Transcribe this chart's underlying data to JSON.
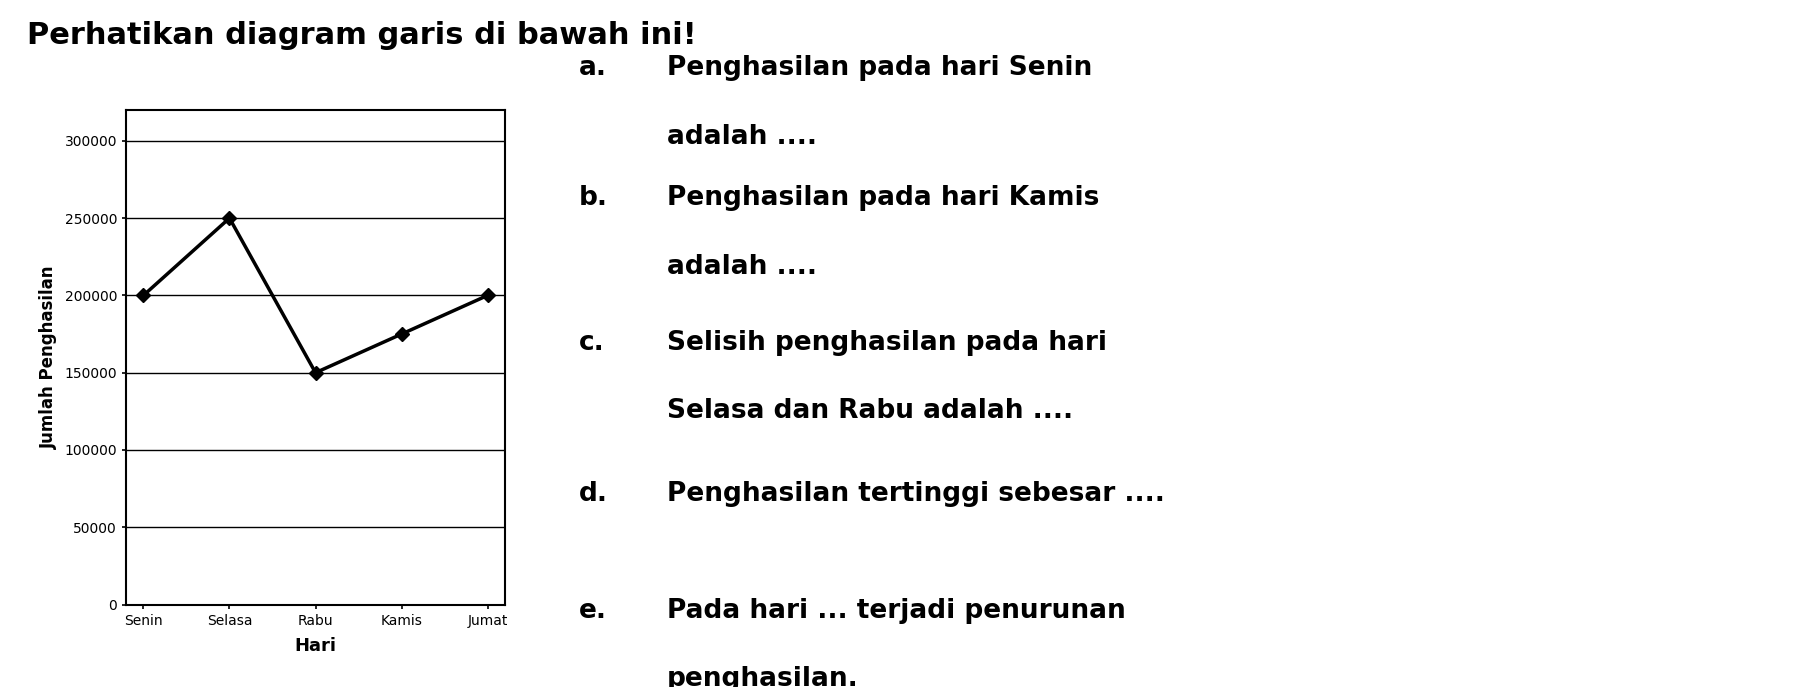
{
  "days": [
    "Senin",
    "Selasa",
    "Rabu",
    "Kamis",
    "Jumat"
  ],
  "values": [
    200000,
    250000,
    150000,
    175000,
    200000
  ],
  "ylabel": "Jumlah Penghasilan",
  "xlabel": "Hari",
  "title": "Perhatikan diagram garis di bawah ini!",
  "yticks": [
    0,
    50000,
    100000,
    150000,
    200000,
    250000,
    300000
  ],
  "ylim": [
    0,
    320000
  ],
  "line_color": "#000000",
  "marker": "D",
  "marker_size": 7,
  "marker_color": "#000000",
  "bg_color": "#ffffff",
  "q_lines": [
    [
      "a.",
      "Penghasilan pada hari Senin",
      "adalah ...."
    ],
    [
      "b.",
      "Penghasilan pada hari Kamis",
      "adalah ...."
    ],
    [
      "c.",
      "Selisih penghasilan pada hari",
      "Selasa dan Rabu adalah ...."
    ],
    [
      "d.",
      "Penghasilan tertinggi sebesar ...."
    ],
    [
      "e.",
      "Pada hari ... terjadi penurunan",
      "penghasilan."
    ]
  ]
}
